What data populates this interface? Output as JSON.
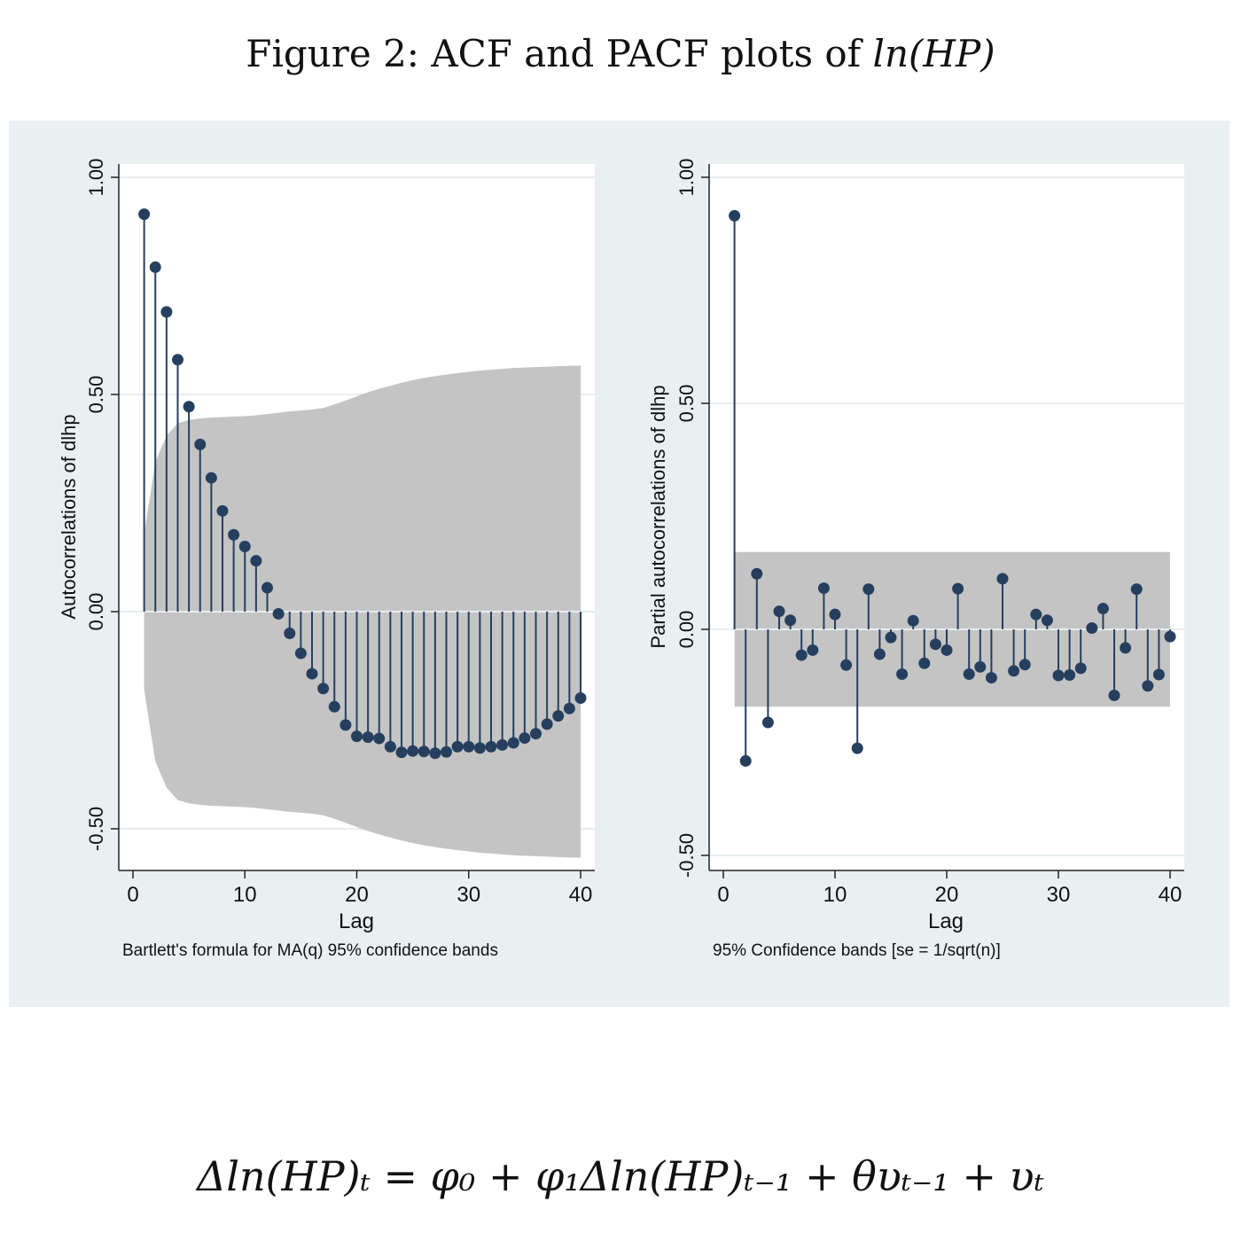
{
  "figure_title": "Figure 2: ACF and PACF plots of",
  "figure_title_math": "ln(HP)",
  "equation": "Δln(HP)ₜ = φ₀ + φ₁Δln(HP)ₜ₋₁ + θυₜ₋₁ + υₜ",
  "colors": {
    "panel_bg": "#eaf0f1",
    "plot_bg": "#ffffff",
    "band": "#c4c4c4",
    "stem": "#263f5f",
    "marker": "#263f5f",
    "grid": "#e8eef0"
  },
  "chart_data": [
    {
      "type": "stem",
      "ylabel": "Autocorrelations of dlhp",
      "xlabel": "Lag",
      "note": "Bartlett's formula for MA(q) 95% confidence bands",
      "xlim": [
        0,
        40
      ],
      "ylim": [
        -0.5,
        1.0
      ],
      "xticks": [
        0,
        10,
        20,
        30,
        40
      ],
      "xtick_labels": [
        "0",
        "10",
        "20",
        "30",
        "40"
      ],
      "yticks": [
        -0.5,
        0,
        0.5,
        1
      ],
      "ytick_labels": [
        "-0.50",
        "0.00",
        "0.50",
        "1.00"
      ],
      "grid": true,
      "x": [
        1,
        2,
        3,
        4,
        5,
        6,
        7,
        8,
        9,
        10,
        11,
        12,
        13,
        14,
        15,
        16,
        17,
        18,
        19,
        20,
        21,
        22,
        23,
        24,
        25,
        26,
        27,
        28,
        29,
        30,
        31,
        32,
        33,
        34,
        35,
        36,
        37,
        38,
        39,
        40
      ],
      "values": [
        0.915,
        0.793,
        0.69,
        0.58,
        0.472,
        0.385,
        0.308,
        0.232,
        0.177,
        0.15,
        0.117,
        0.055,
        -0.005,
        -0.05,
        -0.096,
        -0.143,
        -0.177,
        -0.219,
        -0.261,
        -0.287,
        -0.289,
        -0.292,
        -0.311,
        -0.324,
        -0.321,
        -0.322,
        -0.326,
        -0.323,
        -0.311,
        -0.311,
        -0.314,
        -0.311,
        -0.307,
        -0.302,
        -0.291,
        -0.281,
        -0.259,
        -0.24,
        -0.223,
        -0.199
      ],
      "band_upper": [
        0.179,
        0.345,
        0.405,
        0.434,
        0.441,
        0.445,
        0.447,
        0.448,
        0.449,
        0.45,
        0.452,
        0.455,
        0.458,
        0.461,
        0.463,
        0.465,
        0.469,
        0.477,
        0.486,
        0.496,
        0.505,
        0.513,
        0.52,
        0.527,
        0.533,
        0.538,
        0.542,
        0.546,
        0.549,
        0.552,
        0.555,
        0.557,
        0.559,
        0.561,
        0.562,
        0.563,
        0.564,
        0.565,
        0.566,
        0.566
      ],
      "band_lower": [
        -0.179,
        -0.345,
        -0.405,
        -0.434,
        -0.441,
        -0.445,
        -0.447,
        -0.448,
        -0.449,
        -0.45,
        -0.452,
        -0.455,
        -0.458,
        -0.461,
        -0.463,
        -0.465,
        -0.469,
        -0.477,
        -0.486,
        -0.496,
        -0.505,
        -0.513,
        -0.52,
        -0.527,
        -0.533,
        -0.538,
        -0.542,
        -0.546,
        -0.549,
        -0.552,
        -0.555,
        -0.557,
        -0.559,
        -0.561,
        -0.562,
        -0.563,
        -0.564,
        -0.565,
        -0.566,
        -0.566
      ]
    },
    {
      "type": "stem",
      "ylabel": "Partial autocorrelations of dlhp",
      "xlabel": "Lag",
      "note": "95% Confidence bands [se = 1/sqrt(n)]",
      "xlim": [
        0,
        40
      ],
      "ylim": [
        -0.5,
        1.0
      ],
      "xticks": [
        0,
        10,
        20,
        30,
        40
      ],
      "xtick_labels": [
        "0",
        "10",
        "20",
        "30",
        "40"
      ],
      "yticks": [
        -0.5,
        0,
        0.5,
        1
      ],
      "ytick_labels": [
        "-0.50",
        "0.00",
        "0.50",
        "1.00"
      ],
      "grid": true,
      "x": [
        1,
        2,
        3,
        4,
        5,
        6,
        7,
        8,
        9,
        10,
        11,
        12,
        13,
        14,
        15,
        16,
        17,
        18,
        19,
        20,
        21,
        22,
        23,
        24,
        25,
        26,
        27,
        28,
        29,
        30,
        31,
        32,
        33,
        34,
        35,
        36,
        37,
        38,
        39,
        40
      ],
      "values": [
        0.915,
        -0.291,
        0.123,
        -0.206,
        0.04,
        0.02,
        -0.057,
        -0.046,
        0.091,
        0.033,
        -0.079,
        -0.263,
        0.089,
        -0.055,
        -0.018,
        -0.099,
        0.019,
        -0.075,
        -0.033,
        -0.046,
        0.09,
        -0.099,
        -0.083,
        -0.107,
        0.112,
        -0.092,
        -0.078,
        0.033,
        0.02,
        -0.102,
        -0.101,
        -0.086,
        0.003,
        0.046,
        -0.146,
        -0.041,
        0.089,
        -0.125,
        -0.1,
        -0.016
      ],
      "band_upper": 0.171,
      "band_lower": -0.171
    }
  ]
}
